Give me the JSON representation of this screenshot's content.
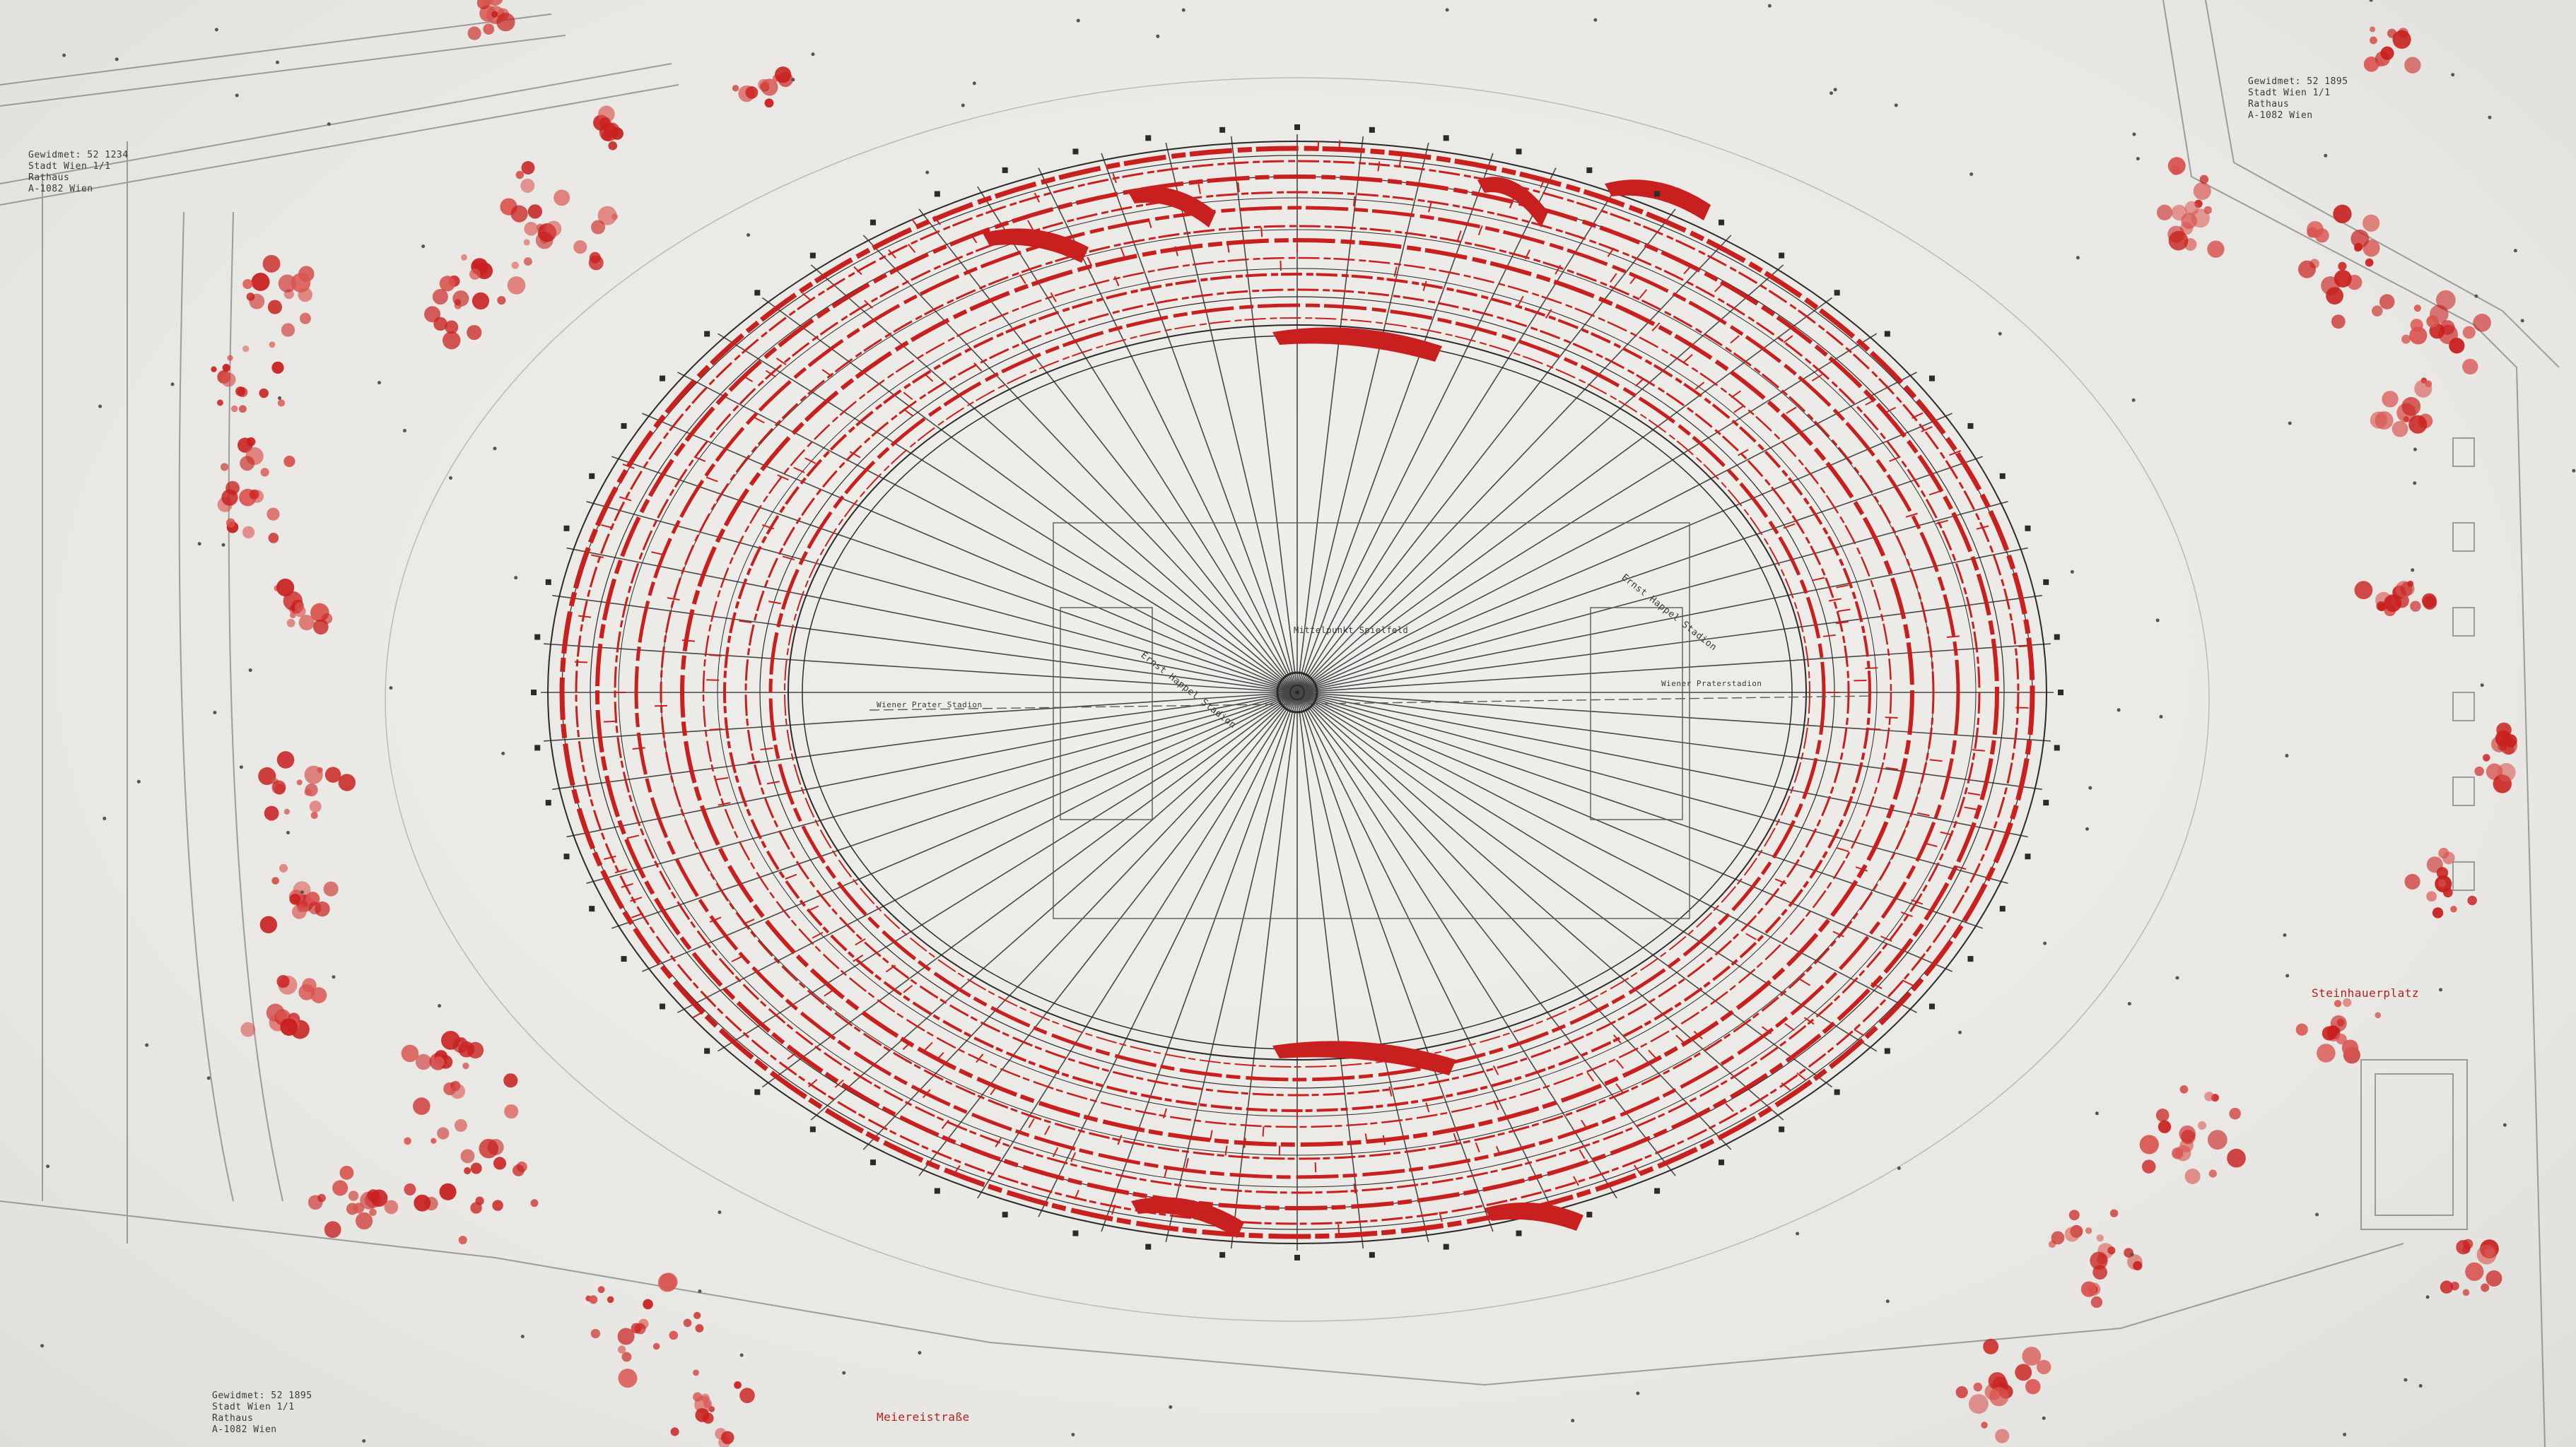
{
  "drawing": {
    "kind": "stadium site plan",
    "colors": {
      "paper": "#eceae6",
      "linework": "#2b2b2b",
      "accent": "#c8201f",
      "accent_light": "#d9534f"
    },
    "labels": {
      "tl_1": "Gewidmet: 52 1234",
      "tl_2": "Stadt Wien 1/1",
      "tl_3": "Rathaus",
      "tl_4": "A-1082 Wien",
      "tr_1": "Gewidmet: 52 1895",
      "tr_2": "Stadt Wien 1/1",
      "tr_3": "Rathaus",
      "tr_4": "A-1082 Wien",
      "bl_1": "Gewidmet: 52 1895",
      "bl_2": "Stadt Wien 1/1",
      "bl_3": "Rathaus",
      "bl_4": "A-1082 Wien",
      "center": "Mittelpunkt Spielfeld",
      "field_left": "Ernst Happel Stadion",
      "field_right": "Ernst Happel Stadion",
      "strip_left": "Wiener Prater Stadion",
      "strip_right": "Wiener Praterstadion",
      "bottom_road": "Meiereistraße",
      "right_place": "Steinhauerplatz"
    }
  }
}
